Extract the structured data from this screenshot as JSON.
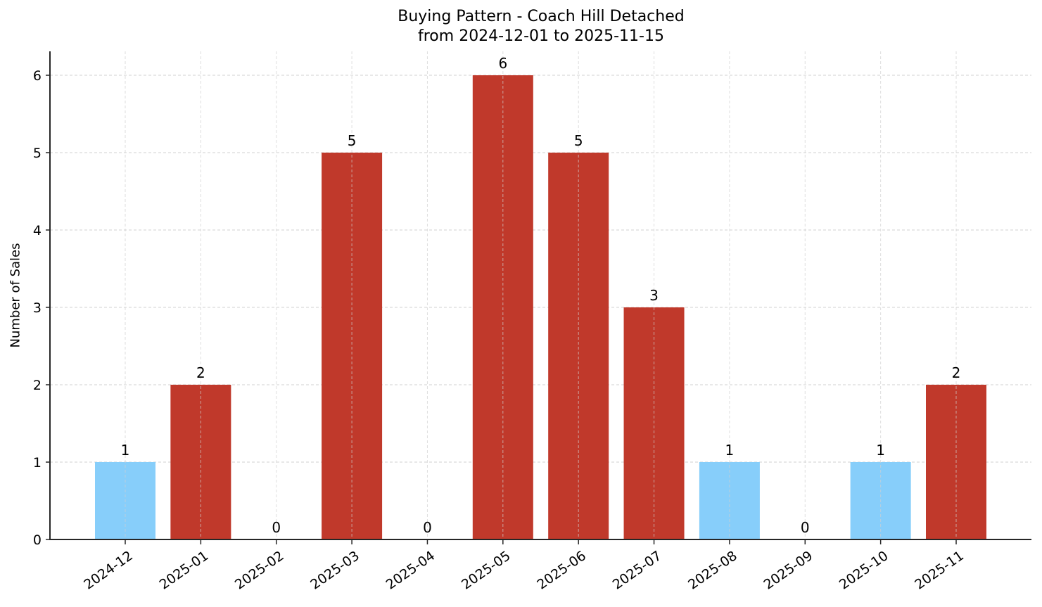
{
  "chart": {
    "title_line1": "Buying Pattern - Coach Hill Detached",
    "title_line2": "from 2024-12-01 to 2025-11-15",
    "ylabel": "Number of Sales",
    "colors": {
      "high": "#c0392b",
      "low": "#87cefa",
      "axis": "#262626",
      "grid": "#d0d0d0"
    }
  },
  "chart_data": {
    "type": "bar",
    "title": "Buying Pattern - Coach Hill Detached\nfrom 2024-12-01 to 2025-11-15",
    "xlabel": "",
    "ylabel": "Number of Sales",
    "categories": [
      "2024-12",
      "2025-01",
      "2025-02",
      "2025-03",
      "2025-04",
      "2025-05",
      "2025-06",
      "2025-07",
      "2025-08",
      "2025-09",
      "2025-10",
      "2025-11"
    ],
    "values": [
      1,
      2,
      0,
      5,
      0,
      6,
      5,
      3,
      1,
      0,
      1,
      2
    ],
    "bar_colors": [
      "#87cefa",
      "#c0392b",
      "#c0392b",
      "#c0392b",
      "#c0392b",
      "#c0392b",
      "#c0392b",
      "#c0392b",
      "#87cefa",
      "#87cefa",
      "#87cefa",
      "#c0392b"
    ],
    "data_labels": [
      "1",
      "2",
      "0",
      "5",
      "0",
      "6",
      "5",
      "3",
      "1",
      "0",
      "1",
      "2"
    ],
    "yticks": [
      0,
      1,
      2,
      3,
      4,
      5,
      6
    ],
    "ylim": [
      0,
      6.3
    ],
    "grid": true,
    "legend": null
  }
}
